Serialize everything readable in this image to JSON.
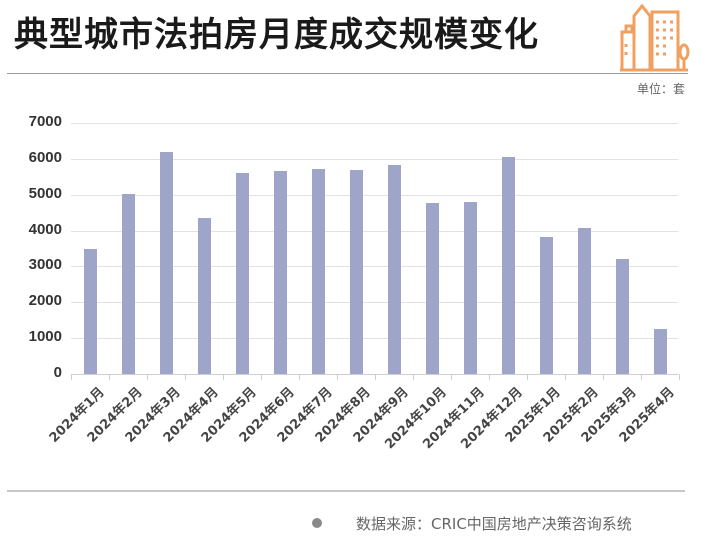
{
  "title": "典型城市法拍房月度成交规模变化",
  "unit_label": "单位：套",
  "source": "数据来源：CRIC中国房地产决策咨询系统",
  "logo_icon": "city-buildings-icon",
  "colors": {
    "bar": "#9ea5c9",
    "logo": "#f0a060",
    "title": "#1a1a1a"
  },
  "chart_data": {
    "type": "bar",
    "title": "典型城市法拍房月度成交规模变化",
    "xlabel": "",
    "ylabel": "单位：套",
    "ylim": [
      0,
      7000
    ],
    "yticks": [
      0,
      1000,
      2000,
      3000,
      4000,
      5000,
      6000,
      7000
    ],
    "grid": true,
    "legend": "none",
    "categories": [
      "2024年1月",
      "2024年2月",
      "2024年3月",
      "2024年4月",
      "2024年5月",
      "2024年6月",
      "2024年7月",
      "2024年8月",
      "2024年9月",
      "2024年10月",
      "2024年11月",
      "2024年12月",
      "2025年1月",
      "2025年2月",
      "2025年3月",
      "2025年4月"
    ],
    "values": [
      3500,
      5030,
      6180,
      4360,
      5600,
      5660,
      5730,
      5690,
      5820,
      4770,
      4800,
      6040,
      3830,
      4080,
      3210,
      1250
    ]
  }
}
